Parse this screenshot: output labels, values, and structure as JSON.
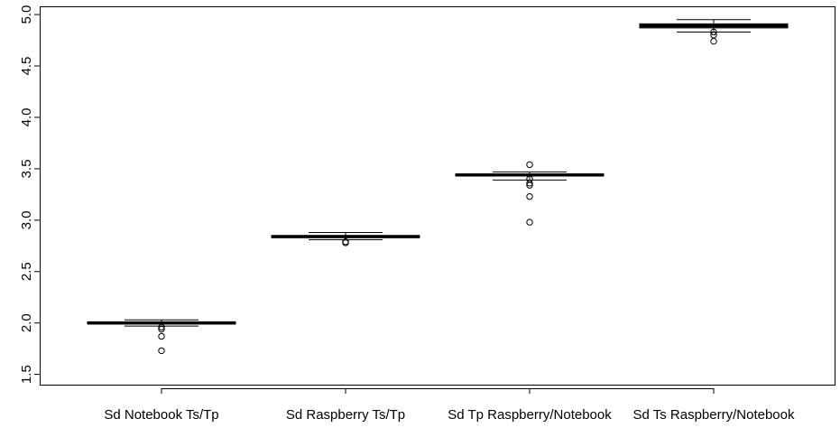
{
  "chart_data": {
    "type": "box",
    "title": "",
    "xlabel": "",
    "ylabel": "",
    "ylim": [
      1.4,
      5.08
    ],
    "yticks": [
      1.5,
      2.0,
      2.5,
      3.0,
      3.5,
      4.0,
      4.5,
      5.0
    ],
    "ytick_labels": [
      "1.5",
      "2.0",
      "2.5",
      "3.0",
      "3.5",
      "4.0",
      "4.5",
      "5.0"
    ],
    "grid": false,
    "legend": "none",
    "categories": [
      "Sd Notebook Ts/Tp",
      "Sd Raspberry Ts/Tp",
      "Sd Tp Raspberry/Notebook",
      "Sd Ts Raspberry/Notebook"
    ],
    "boxes": [
      {
        "whisker_low": 1.97,
        "q1": 1.99,
        "median": 2.0,
        "q3": 2.01,
        "whisker_high": 2.03,
        "outliers": [
          1.96,
          1.94,
          1.87,
          1.73
        ]
      },
      {
        "whisker_low": 2.81,
        "q1": 2.83,
        "median": 2.84,
        "q3": 2.85,
        "whisker_high": 2.88,
        "outliers": [
          2.79,
          2.78
        ]
      },
      {
        "whisker_low": 3.39,
        "q1": 3.43,
        "median": 3.44,
        "q3": 3.45,
        "whisker_high": 3.47,
        "outliers": [
          3.54,
          3.4,
          3.36,
          3.34,
          3.23,
          2.98
        ]
      },
      {
        "whisker_low": 4.83,
        "q1": 4.87,
        "median": 4.89,
        "q3": 4.91,
        "whisker_high": 4.95,
        "outliers": [
          4.83,
          4.8,
          4.74
        ]
      }
    ]
  }
}
